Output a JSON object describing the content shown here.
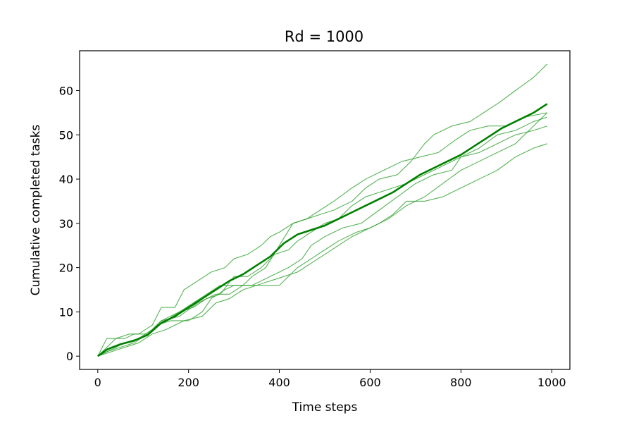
{
  "chart_data": {
    "type": "line",
    "title": "Rd = 1000",
    "xlabel": "Time steps",
    "ylabel": "Cumulative completed tasks",
    "xlim": [
      -40,
      1040
    ],
    "ylim": [
      -3,
      69
    ],
    "xticks": [
      0,
      200,
      400,
      600,
      800,
      1000
    ],
    "yticks": [
      0,
      10,
      20,
      30,
      40,
      50,
      60
    ],
    "grid": false,
    "legend": "none",
    "colors": {
      "series": "#2ca02c",
      "mean": "#008000",
      "axes": "#000000"
    },
    "series": [
      {
        "points": [
          [
            0,
            0
          ],
          [
            20,
            1
          ],
          [
            40,
            2
          ],
          [
            60,
            3
          ],
          [
            90,
            4
          ],
          [
            110,
            5
          ],
          [
            130,
            7
          ],
          [
            160,
            8
          ],
          [
            200,
            8
          ],
          [
            230,
            10
          ],
          [
            250,
            13
          ],
          [
            280,
            15
          ],
          [
            300,
            16
          ],
          [
            340,
            16
          ],
          [
            360,
            17
          ],
          [
            380,
            18
          ],
          [
            400,
            19
          ],
          [
            420,
            20
          ],
          [
            450,
            22
          ],
          [
            470,
            25
          ],
          [
            500,
            27
          ],
          [
            540,
            29
          ],
          [
            580,
            30
          ],
          [
            620,
            33
          ],
          [
            660,
            36
          ],
          [
            700,
            39
          ],
          [
            740,
            41
          ],
          [
            780,
            42
          ],
          [
            800,
            45
          ],
          [
            840,
            46
          ],
          [
            880,
            48
          ],
          [
            920,
            50
          ],
          [
            960,
            51
          ],
          [
            990,
            52
          ]
        ]
      },
      {
        "points": [
          [
            0,
            0
          ],
          [
            20,
            2
          ],
          [
            40,
            4
          ],
          [
            70,
            5
          ],
          [
            90,
            5
          ],
          [
            120,
            7
          ],
          [
            140,
            11
          ],
          [
            170,
            11
          ],
          [
            190,
            15
          ],
          [
            220,
            17
          ],
          [
            250,
            19
          ],
          [
            280,
            20
          ],
          [
            300,
            22
          ],
          [
            330,
            23
          ],
          [
            360,
            25
          ],
          [
            380,
            27
          ],
          [
            400,
            28
          ],
          [
            430,
            30
          ],
          [
            460,
            31
          ],
          [
            490,
            32
          ],
          [
            520,
            33
          ],
          [
            560,
            35
          ],
          [
            590,
            38
          ],
          [
            620,
            40
          ],
          [
            660,
            41
          ],
          [
            690,
            44
          ],
          [
            720,
            48
          ],
          [
            740,
            50
          ],
          [
            780,
            52
          ],
          [
            820,
            53
          ],
          [
            850,
            55
          ],
          [
            880,
            57
          ],
          [
            920,
            60
          ],
          [
            960,
            63
          ],
          [
            990,
            66
          ]
        ]
      },
      {
        "points": [
          [
            0,
            0
          ],
          [
            20,
            4
          ],
          [
            60,
            4
          ],
          [
            80,
            5
          ],
          [
            110,
            5
          ],
          [
            140,
            8
          ],
          [
            180,
            10
          ],
          [
            210,
            12
          ],
          [
            240,
            14
          ],
          [
            270,
            16
          ],
          [
            310,
            16
          ],
          [
            370,
            16
          ],
          [
            400,
            16
          ],
          [
            440,
            20
          ],
          [
            470,
            22
          ],
          [
            500,
            24
          ],
          [
            530,
            26
          ],
          [
            570,
            28
          ],
          [
            600,
            29
          ],
          [
            640,
            31
          ],
          [
            680,
            34
          ],
          [
            720,
            36
          ],
          [
            760,
            39
          ],
          [
            800,
            42
          ],
          [
            840,
            44
          ],
          [
            880,
            46
          ],
          [
            920,
            48
          ],
          [
            960,
            52
          ],
          [
            990,
            55
          ]
        ]
      },
      {
        "points": [
          [
            0,
            0
          ],
          [
            20,
            1
          ],
          [
            50,
            2
          ],
          [
            80,
            3
          ],
          [
            110,
            5
          ],
          [
            140,
            8
          ],
          [
            180,
            9
          ],
          [
            220,
            12
          ],
          [
            260,
            14
          ],
          [
            290,
            14
          ],
          [
            320,
            16
          ],
          [
            340,
            18
          ],
          [
            370,
            20
          ],
          [
            400,
            25
          ],
          [
            430,
            30
          ],
          [
            460,
            31
          ],
          [
            490,
            33
          ],
          [
            520,
            35
          ],
          [
            560,
            38
          ],
          [
            590,
            40
          ],
          [
            630,
            42
          ],
          [
            670,
            44
          ],
          [
            710,
            45
          ],
          [
            750,
            46
          ],
          [
            790,
            49
          ],
          [
            820,
            51
          ],
          [
            860,
            52
          ],
          [
            900,
            52
          ],
          [
            940,
            54
          ],
          [
            990,
            55
          ]
        ]
      },
      {
        "points": [
          [
            0,
            0
          ],
          [
            30,
            2
          ],
          [
            60,
            3
          ],
          [
            90,
            4
          ],
          [
            120,
            6
          ],
          [
            150,
            8
          ],
          [
            180,
            10
          ],
          [
            210,
            11
          ],
          [
            240,
            13
          ],
          [
            270,
            14
          ],
          [
            300,
            18
          ],
          [
            330,
            18
          ],
          [
            360,
            20
          ],
          [
            390,
            23
          ],
          [
            420,
            24
          ],
          [
            440,
            26
          ],
          [
            470,
            28
          ],
          [
            500,
            30
          ],
          [
            530,
            31
          ],
          [
            560,
            34
          ],
          [
            590,
            36
          ],
          [
            620,
            37
          ],
          [
            650,
            38
          ],
          [
            680,
            39
          ],
          [
            720,
            41
          ],
          [
            760,
            43
          ],
          [
            800,
            45
          ],
          [
            840,
            47
          ],
          [
            880,
            50
          ],
          [
            920,
            51
          ],
          [
            960,
            53
          ],
          [
            990,
            54
          ]
        ]
      },
      {
        "points": [
          [
            0,
            0
          ],
          [
            30,
            1
          ],
          [
            60,
            2
          ],
          [
            90,
            3
          ],
          [
            120,
            5
          ],
          [
            150,
            6
          ],
          [
            190,
            8
          ],
          [
            230,
            9
          ],
          [
            260,
            12
          ],
          [
            290,
            13
          ],
          [
            320,
            15
          ],
          [
            350,
            16
          ],
          [
            380,
            17
          ],
          [
            410,
            18
          ],
          [
            440,
            19
          ],
          [
            470,
            21
          ],
          [
            500,
            23
          ],
          [
            530,
            25
          ],
          [
            560,
            27
          ],
          [
            580,
            28
          ],
          [
            620,
            30
          ],
          [
            650,
            32
          ],
          [
            680,
            35
          ],
          [
            720,
            35
          ],
          [
            760,
            36
          ],
          [
            800,
            38
          ],
          [
            840,
            40
          ],
          [
            880,
            42
          ],
          [
            920,
            45
          ],
          [
            960,
            47
          ],
          [
            990,
            48
          ]
        ]
      },
      {
        "name": "",
        "mean": true,
        "points": [
          [
            0,
            0
          ],
          [
            20,
            1.5
          ],
          [
            50,
            2.7
          ],
          [
            80,
            3.5
          ],
          [
            110,
            4.8
          ],
          [
            140,
            7.5
          ],
          [
            170,
            9
          ],
          [
            200,
            11
          ],
          [
            230,
            13
          ],
          [
            260,
            15
          ],
          [
            290,
            17
          ],
          [
            320,
            18.5
          ],
          [
            350,
            20.5
          ],
          [
            380,
            22.5
          ],
          [
            410,
            25.5
          ],
          [
            440,
            27.5
          ],
          [
            470,
            28.5
          ],
          [
            500,
            29.5
          ],
          [
            530,
            31
          ],
          [
            560,
            32.5
          ],
          [
            590,
            34
          ],
          [
            620,
            35.5
          ],
          [
            650,
            37
          ],
          [
            680,
            39
          ],
          [
            710,
            41
          ],
          [
            740,
            42.5
          ],
          [
            770,
            44
          ],
          [
            800,
            45.5
          ],
          [
            830,
            47.5
          ],
          [
            860,
            49.5
          ],
          [
            890,
            51.5
          ],
          [
            920,
            53
          ],
          [
            960,
            55
          ],
          [
            990,
            57
          ]
        ]
      }
    ]
  }
}
